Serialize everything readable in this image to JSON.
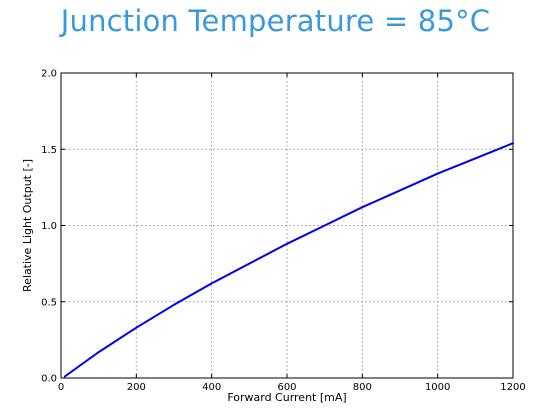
{
  "title": "Junction Temperature = 85°C",
  "colors": {
    "title": "#3a9ad9",
    "series": "#0000ee",
    "grid": "#9a9a9a",
    "axis": "#000000",
    "background": "#ffffff"
  },
  "chart_data": {
    "type": "line",
    "title": "Junction Temperature = 85°C",
    "xlabel": "Forward Current [mA]",
    "ylabel": "Relative Light Output [-]",
    "xlim": [
      0,
      1200
    ],
    "ylim": [
      0.0,
      2.0
    ],
    "grid": true,
    "x_ticks": [
      0,
      200,
      400,
      600,
      800,
      1000,
      1200
    ],
    "y_ticks": [
      0.0,
      0.5,
      1.0,
      1.5,
      2.0
    ],
    "x_tick_labels": [
      "0",
      "200",
      "400",
      "600",
      "800",
      "1000",
      "1200"
    ],
    "y_tick_labels": [
      "0.0",
      "0.5",
      "1.0",
      "1.5",
      "2.0"
    ],
    "series": [
      {
        "x": [
          10,
          100,
          200,
          300,
          400,
          500,
          600,
          700,
          800,
          900,
          1000,
          1100,
          1200
        ],
        "y": [
          0.01,
          0.17,
          0.33,
          0.48,
          0.62,
          0.75,
          0.88,
          1.0,
          1.12,
          1.23,
          1.34,
          1.44,
          1.54
        ]
      }
    ]
  }
}
